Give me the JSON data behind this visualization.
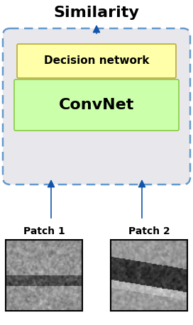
{
  "title": "Similarity",
  "title_fontsize": 16,
  "bg_box_color": "#e8e8ec",
  "bg_box_edge_color": "#6699cc",
  "decision_box_color": "#ffffaa",
  "decision_box_edge_color": "#bbaa33",
  "decision_label": "Decision network",
  "decision_fontsize": 11,
  "convnet_box_color": "#ccffaa",
  "convnet_box_edge_color": "#88cc44",
  "convnet_label": "ConvNet",
  "convnet_fontsize": 16,
  "patch1_label": "Patch 1",
  "patch2_label": "Patch 2",
  "patch_label_fontsize": 10,
  "arrow_color": "#1155aa",
  "figure_bg": "#ffffff",
  "fig_w": 2.72,
  "fig_h": 4.58,
  "dpi": 100
}
